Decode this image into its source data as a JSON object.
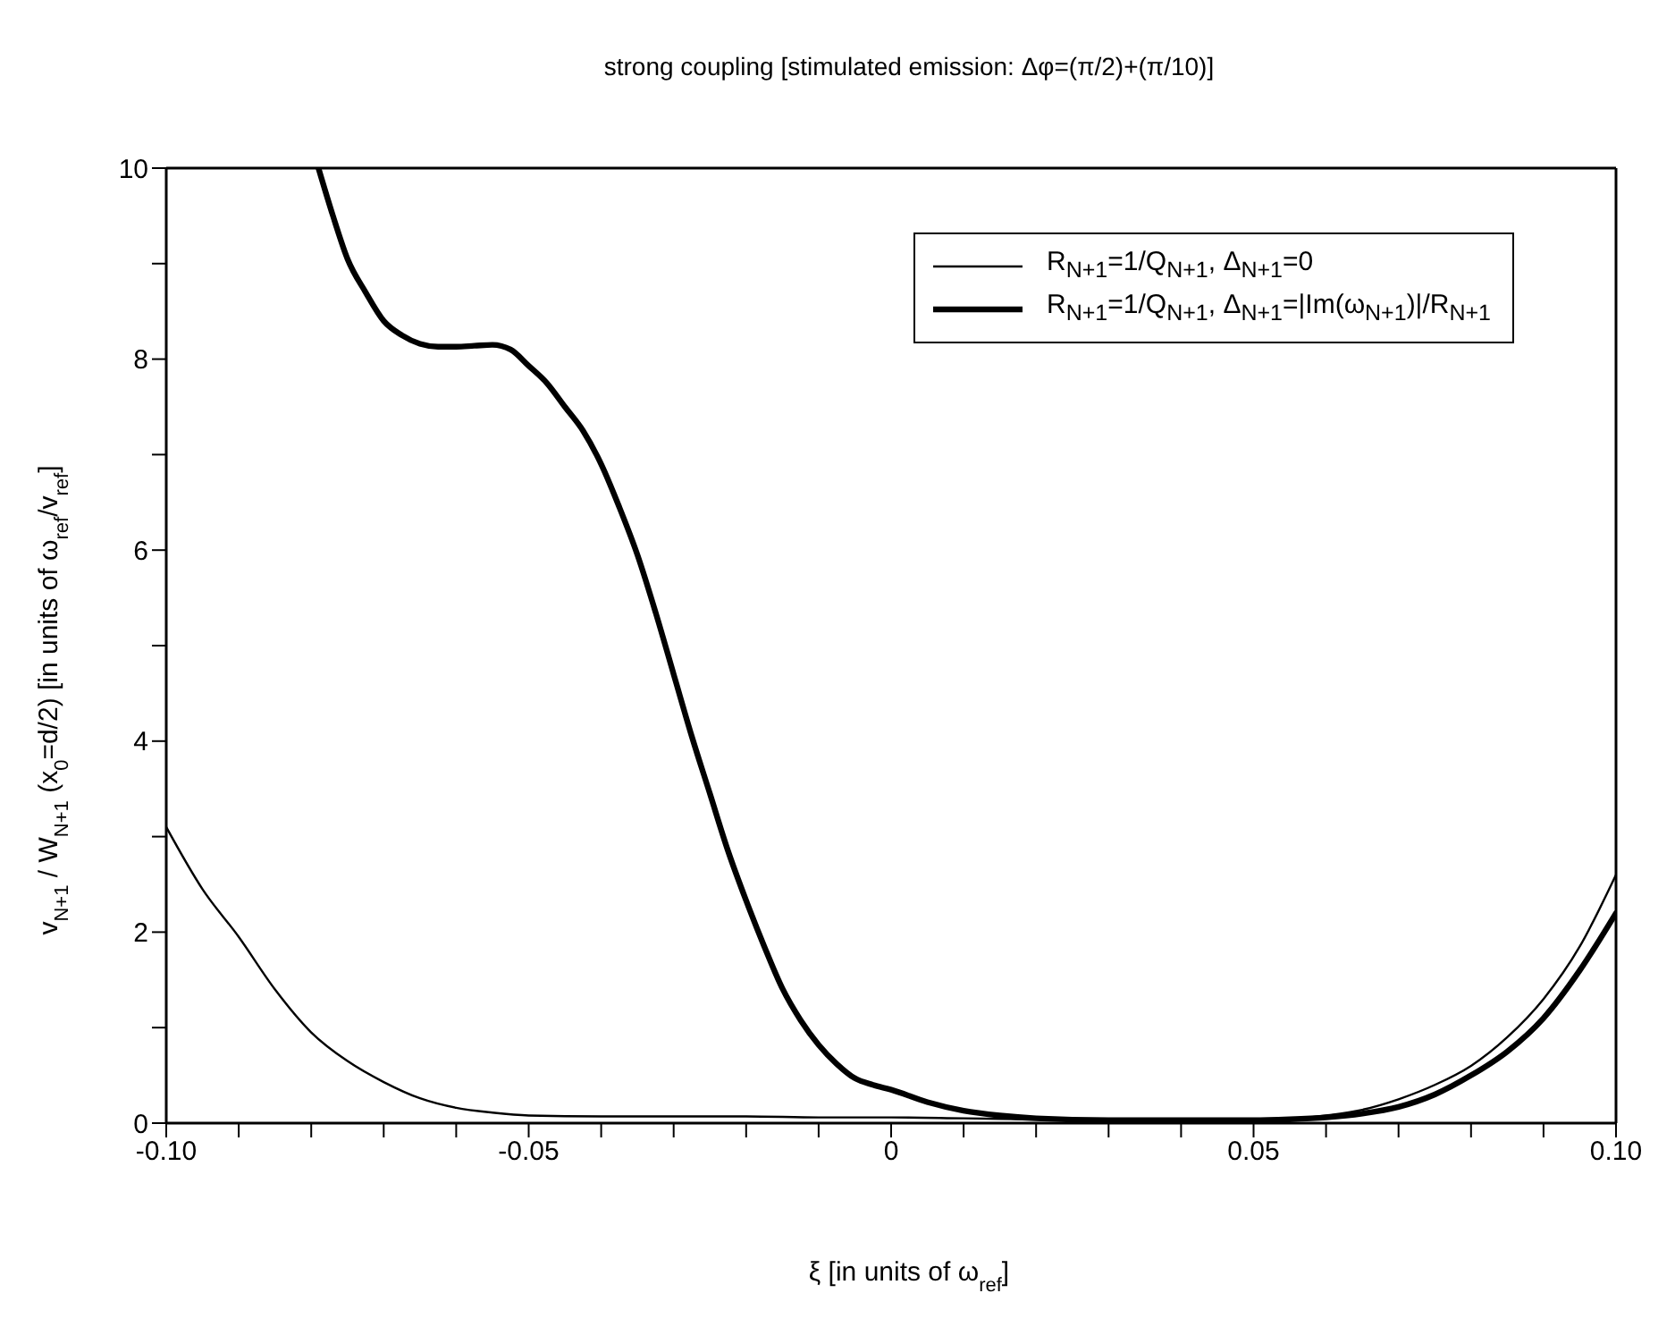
{
  "chart_data": {
    "type": "line",
    "title": "strong coupling [stimulated emission: Δφ=(π/2)+(π/10)]",
    "xlabel": "ξ [in units of ω$_{ref}$]",
    "ylabel": "v$_{N+1}$ / W$_{N+1}$ (x$_{0}$=d/2) [in units of ω$_{ref}$/v$_{ref}$]",
    "legend": "top right",
    "marker": "none",
    "line_style": "solid",
    "xlim": [
      -0.1,
      0.1
    ],
    "ylim": [
      0,
      10
    ],
    "xticks": [
      {
        "value": -0.1,
        "label": "-0.10"
      },
      {
        "value": -0.09,
        "label": null
      },
      {
        "value": -0.08,
        "label": null
      },
      {
        "value": -0.07,
        "label": null
      },
      {
        "value": -0.06,
        "label": null
      },
      {
        "value": -0.05,
        "label": "-0.05"
      },
      {
        "value": -0.04,
        "label": null
      },
      {
        "value": -0.03,
        "label": null
      },
      {
        "value": -0.02,
        "label": null
      },
      {
        "value": -0.01,
        "label": null
      },
      {
        "value": 0,
        "label": "0"
      },
      {
        "value": 0.01,
        "label": null
      },
      {
        "value": 0.02,
        "label": null
      },
      {
        "value": 0.03,
        "label": null
      },
      {
        "value": 0.04,
        "label": null
      },
      {
        "value": 0.05,
        "label": "0.05"
      },
      {
        "value": 0.06,
        "label": null
      },
      {
        "value": 0.07,
        "label": null
      },
      {
        "value": 0.08,
        "label": null
      },
      {
        "value": 0.09,
        "label": null
      },
      {
        "value": 0.1,
        "label": "0.10"
      }
    ],
    "yticks": [
      0,
      {
        "value": 1,
        "label": null
      },
      2,
      {
        "value": 3,
        "label": null
      },
      4,
      {
        "value": 5,
        "label": null
      },
      6,
      {
        "value": 7,
        "label": null
      },
      8,
      {
        "value": 9,
        "label": null
      },
      10
    ],
    "series": [
      {
        "name": "R$_{N+1}$=1/Q$_{N+1}$, Δ$_{N+1}$=0",
        "color": "#000000",
        "x": [
          -0.1,
          -0.095,
          -0.09,
          -0.085,
          -0.08,
          -0.075,
          -0.07,
          -0.065,
          -0.06,
          -0.055,
          -0.05,
          -0.04,
          -0.03,
          -0.02,
          -0.01,
          0,
          0.01,
          0.02,
          0.03,
          0.04,
          0.05,
          0.055,
          0.06,
          0.065,
          0.07,
          0.075,
          0.08,
          0.085,
          0.09,
          0.095,
          0.1
        ],
        "values": [
          3.1,
          2.45,
          1.95,
          1.4,
          0.95,
          0.65,
          0.43,
          0.26,
          0.16,
          0.11,
          0.08,
          0.07,
          0.07,
          0.07,
          0.06,
          0.06,
          0.05,
          0.04,
          0.03,
          0.03,
          0.03,
          0.04,
          0.08,
          0.14,
          0.25,
          0.4,
          0.6,
          0.9,
          1.3,
          1.85,
          2.6
        ]
      },
      {
        "name": "R$_{N+1}$=1/Q$_{N+1}$, Δ$_{N+1}$=|Im(ω$_{N+1}$)|/R$_{N+1}$",
        "color": "#000000",
        "x": [
          -0.079,
          -0.077,
          -0.075,
          -0.0725,
          -0.07,
          -0.0675,
          -0.065,
          -0.0625,
          -0.06,
          -0.0575,
          -0.055,
          -0.0525,
          -0.05,
          -0.0475,
          -0.045,
          -0.0425,
          -0.04,
          -0.0375,
          -0.035,
          -0.0325,
          -0.03,
          -0.0275,
          -0.025,
          -0.0225,
          -0.02,
          -0.0175,
          -0.015,
          -0.0125,
          -0.01,
          -0.0075,
          -0.005,
          -0.0025,
          0,
          0.005,
          0.01,
          0.015,
          0.02,
          0.03,
          0.04,
          0.05,
          0.055,
          0.06,
          0.065,
          0.07,
          0.075,
          0.08,
          0.085,
          0.09,
          0.095,
          0.1
        ],
        "values": [
          10,
          9.5,
          9.05,
          8.7,
          8.4,
          8.25,
          8.16,
          8.13,
          8.13,
          8.14,
          8.15,
          8.1,
          7.93,
          7.75,
          7.5,
          7.25,
          6.9,
          6.45,
          5.95,
          5.35,
          4.7,
          4.05,
          3.45,
          2.85,
          2.33,
          1.85,
          1.41,
          1.08,
          0.82,
          0.62,
          0.47,
          0.4,
          0.35,
          0.22,
          0.13,
          0.08,
          0.05,
          0.03,
          0.03,
          0.03,
          0.04,
          0.06,
          0.1,
          0.17,
          0.3,
          0.5,
          0.75,
          1.1,
          1.6,
          2.2
        ]
      }
    ]
  }
}
